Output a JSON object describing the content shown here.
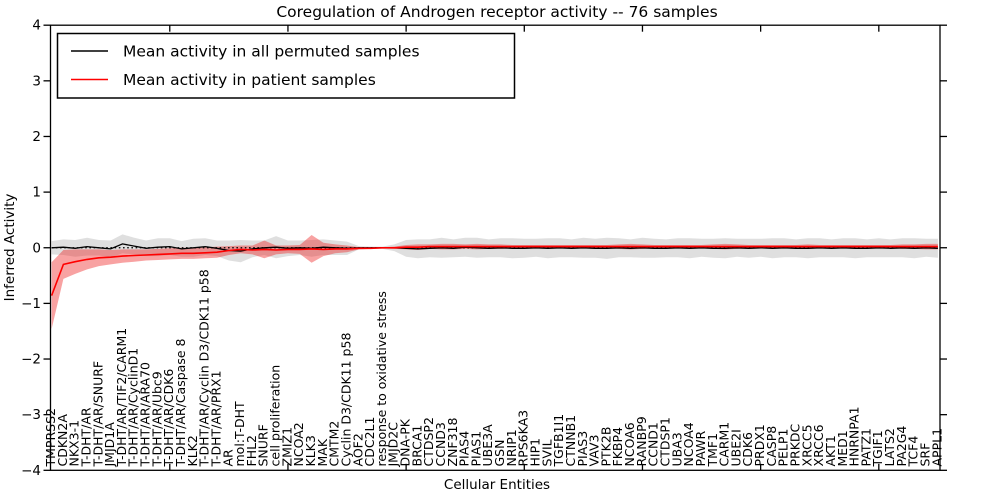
{
  "title": "Coregulation of Androgen receptor activity -- 76 samples",
  "legend": {
    "items": [
      {
        "label": "Mean activity in all permuted samples",
        "color": "#000000"
      },
      {
        "label": "Mean activity in patient samples",
        "color": "#ff0000"
      }
    ]
  },
  "axes": {
    "x_label": "Cellular Entities",
    "y_label": "Inferred Activity",
    "y_ticks": [
      -4,
      -3,
      -2,
      -1,
      0,
      1,
      2,
      3,
      4
    ],
    "y_min": -4,
    "y_max": 4
  },
  "chart_data": {
    "type": "line",
    "title": "Coregulation of Androgen receptor activity -- 76 samples",
    "xlabel": "Cellular Entities",
    "ylabel": "Inferred Activity",
    "ylim": [
      -4,
      4
    ],
    "grid": false,
    "legend_position": "upper left",
    "zero_reference_line": {
      "style": "dotted",
      "color": "#000000",
      "y": 0
    },
    "categories": [
      "TMPRSS2",
      "CDKN2A",
      "NKX3-1",
      "T-DHT/AR",
      "T-DHT/AR/SNURF",
      "JMJD1A",
      "T-DHT/AR/TIF2/CARM1",
      "T-DHT/AR/CyclinD1",
      "T-DHT/AR/ARA70",
      "T-DHT/AR/Ubc9",
      "T-DHT/AR/CDK6",
      "T-DHT/AR/Caspase 8",
      "KLK2",
      "T-DHT/AR/Cyclin D3/CDK11 p58",
      "T-DHT/AR/PRX1",
      "AR",
      "mol:T-DHT",
      "FHL2",
      "SNURF",
      "cell proliferation",
      "ZMIZ1",
      "NCOA2",
      "KLK3",
      "MAK",
      "CMTM2",
      "Cyclin D3/CDK11 p58",
      "AOF2",
      "CDC2L1",
      "response to oxidative stress",
      "JMJD2C",
      "DNA-PK",
      "BRCA1",
      "CTDSP2",
      "CCND3",
      "ZNF318",
      "PIAS4",
      "PIAS1",
      "UBE3A",
      "GSN",
      "NRIP1",
      "RPS6KA3",
      "HIP1",
      "SVIL",
      "TGFB1I1",
      "CTNNB1",
      "PIAS3",
      "VAV3",
      "PTK2B",
      "FKBP4",
      "NCOA6",
      "RANBP9",
      "CCND1",
      "CTDSP1",
      "UBA3",
      "NCOA4",
      "PAWR",
      "TMF1",
      "CARM1",
      "UBE2I",
      "CDK6",
      "PRDX1",
      "CASP8",
      "PELP1",
      "PRKDC",
      "XRCC5",
      "XRCC6",
      "AKT1",
      "MED1",
      "HNRNPA1",
      "PATZ1",
      "TGIF1",
      "LATS2",
      "PA2G4",
      "TCF4",
      "SRF",
      "APPL1"
    ],
    "series": [
      {
        "name": "Mean activity in all permuted samples",
        "color": "#000000",
        "band_color": "#bfbfbf",
        "band_opacity": 0.5,
        "values": [
          0.0,
          0.01,
          -0.01,
          0.02,
          0.0,
          -0.02,
          0.07,
          0.03,
          -0.01,
          0.01,
          0.02,
          -0.02,
          0.0,
          0.02,
          -0.01,
          -0.05,
          -0.06,
          -0.02,
          0.0,
          0.01,
          -0.01,
          0.0,
          -0.01,
          0.01,
          0.0,
          -0.01,
          0.0,
          0.0,
          0.0,
          0.0,
          -0.01,
          -0.02,
          -0.01,
          0.0,
          -0.01,
          0.01,
          0.0,
          -0.01,
          0.0,
          -0.01,
          -0.01,
          0.0,
          -0.01,
          0.0,
          -0.01,
          0.0,
          -0.01,
          -0.01,
          0.0,
          -0.01,
          0.0,
          -0.01,
          -0.01,
          0.0,
          -0.01,
          0.0,
          -0.01,
          -0.01,
          0.0,
          -0.01,
          0.0,
          -0.01,
          0.0,
          -0.01,
          -0.01,
          0.0,
          -0.01,
          0.0,
          -0.01,
          -0.01,
          0.0,
          -0.01,
          0.0,
          -0.01,
          0.0,
          -0.01
        ],
        "band_halfwidth": [
          0.12,
          0.14,
          0.15,
          0.16,
          0.14,
          0.15,
          0.17,
          0.15,
          0.14,
          0.16,
          0.15,
          0.14,
          0.16,
          0.15,
          0.14,
          0.18,
          0.2,
          0.15,
          0.13,
          0.2,
          0.14,
          0.13,
          0.15,
          0.14,
          0.13,
          0.12,
          0.03,
          0.02,
          0.02,
          0.06,
          0.15,
          0.17,
          0.16,
          0.18,
          0.16,
          0.17,
          0.18,
          0.16,
          0.17,
          0.18,
          0.17,
          0.16,
          0.18,
          0.17,
          0.16,
          0.18,
          0.17,
          0.19,
          0.17,
          0.16,
          0.18,
          0.17,
          0.16,
          0.17,
          0.18,
          0.16,
          0.17,
          0.18,
          0.16,
          0.17,
          0.16,
          0.18,
          0.17,
          0.16,
          0.18,
          0.17,
          0.16,
          0.17,
          0.18,
          0.16,
          0.17,
          0.16,
          0.17,
          0.18,
          0.16,
          0.17
        ]
      },
      {
        "name": "Mean activity in patient samples",
        "color": "#ff0000",
        "band_color": "#ee2222",
        "band_opacity": 0.42,
        "values": [
          -0.86,
          -0.3,
          -0.25,
          -0.21,
          -0.18,
          -0.17,
          -0.15,
          -0.14,
          -0.13,
          -0.12,
          -0.11,
          -0.1,
          -0.1,
          -0.09,
          -0.08,
          -0.05,
          -0.03,
          -0.04,
          -0.03,
          -0.04,
          -0.03,
          -0.03,
          -0.02,
          -0.03,
          -0.02,
          -0.02,
          -0.01,
          -0.01,
          0.0,
          0.0,
          0.01,
          0.01,
          0.02,
          0.02,
          0.02,
          0.02,
          0.02,
          0.02,
          0.02,
          0.02,
          0.02,
          0.02,
          0.02,
          0.02,
          0.02,
          0.02,
          0.02,
          0.02,
          0.02,
          0.02,
          0.02,
          0.02,
          0.02,
          0.02,
          0.02,
          0.02,
          0.02,
          0.02,
          0.02,
          0.02,
          0.02,
          0.02,
          0.02,
          0.02,
          0.02,
          0.02,
          0.02,
          0.02,
          0.02,
          0.02,
          0.02,
          0.02,
          0.02,
          0.02,
          0.02,
          0.02
        ],
        "band_halfwidth": [
          0.6,
          0.26,
          0.22,
          0.18,
          0.15,
          0.13,
          0.12,
          0.11,
          0.1,
          0.1,
          0.1,
          0.1,
          0.1,
          0.1,
          0.1,
          0.08,
          0.07,
          0.08,
          0.16,
          0.08,
          0.07,
          0.08,
          0.25,
          0.12,
          0.08,
          0.06,
          0.02,
          0.01,
          0.01,
          0.02,
          0.04,
          0.05,
          0.04,
          0.05,
          0.05,
          0.04,
          0.05,
          0.04,
          0.04,
          0.03,
          0.03,
          0.03,
          0.03,
          0.03,
          0.03,
          0.03,
          0.03,
          0.03,
          0.04,
          0.05,
          0.04,
          0.03,
          0.03,
          0.03,
          0.03,
          0.03,
          0.04,
          0.05,
          0.04,
          0.03,
          0.03,
          0.03,
          0.03,
          0.03,
          0.04,
          0.03,
          0.03,
          0.03,
          0.03,
          0.03,
          0.03,
          0.03,
          0.04,
          0.04,
          0.05,
          0.05
        ]
      }
    ]
  }
}
